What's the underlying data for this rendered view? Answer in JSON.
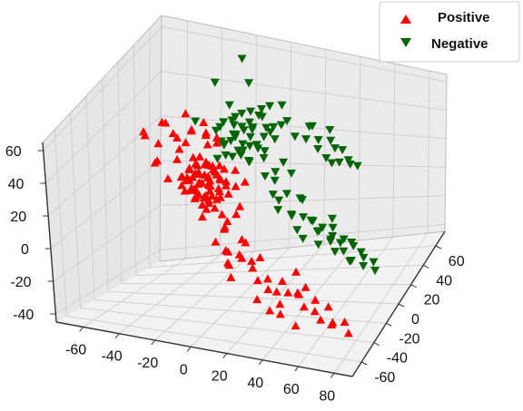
{
  "chart_data": {
    "type": "scatter",
    "projection": "3d",
    "title": "",
    "xlabel": "",
    "ylabel": "",
    "zlabel": "",
    "grid": true,
    "legend_position": "top-right",
    "axes": {
      "x": {
        "range": [
          -75,
          90
        ],
        "ticks": [
          -60,
          -40,
          -20,
          0,
          20,
          40,
          60,
          80
        ]
      },
      "y": {
        "range": [
          -75,
          75
        ],
        "ticks": [
          -60,
          -40,
          -20,
          0,
          20,
          40,
          60
        ]
      },
      "z": {
        "range": [
          -45,
          65
        ],
        "ticks": [
          -40,
          -20,
          0,
          20,
          40,
          60
        ]
      }
    },
    "series": [
      {
        "name": "Positive",
        "marker": "triangle-up",
        "color": "#ff0000",
        "points": [
          [
            -12,
            -25,
            32
          ],
          [
            -8,
            -22,
            30
          ],
          [
            -15,
            -20,
            34
          ],
          [
            -5,
            -28,
            36
          ],
          [
            -10,
            -18,
            28
          ],
          [
            -18,
            -24,
            38
          ],
          [
            -3,
            -20,
            26
          ],
          [
            -12,
            -30,
            30
          ],
          [
            -6,
            -15,
            33
          ],
          [
            -20,
            -22,
            32
          ],
          [
            -9,
            -26,
            24
          ],
          [
            -14,
            -12,
            36
          ],
          [
            -2,
            -24,
            30
          ],
          [
            -16,
            -28,
            28
          ],
          [
            -7,
            -19,
            40
          ],
          [
            -11,
            -22,
            22
          ],
          [
            -4,
            -30,
            34
          ],
          [
            -19,
            -17,
            30
          ],
          [
            -13,
            -25,
            42
          ],
          [
            -1,
            -16,
            28
          ],
          [
            -17,
            -31,
            35
          ],
          [
            -8,
            -11,
            31
          ],
          [
            -10,
            -27,
            20
          ],
          [
            -5,
            -21,
            38
          ],
          [
            -15,
            -14,
            26
          ],
          [
            -12,
            -33,
            32
          ],
          [
            -3,
            -13,
            36
          ],
          [
            -21,
            -26,
            34
          ],
          [
            -9,
            -20,
            18
          ],
          [
            -6,
            -32,
            29
          ],
          [
            -14,
            -19,
            44
          ],
          [
            -2,
            -27,
            25
          ],
          [
            -18,
            -15,
            37
          ],
          [
            -11,
            -29,
            27
          ],
          [
            -7,
            -24,
            43
          ],
          [
            -16,
            -21,
            21
          ],
          [
            -4,
            -17,
            32
          ],
          [
            -13,
            -34,
            33
          ],
          [
            -20,
            -19,
            29
          ],
          [
            -8,
            -28,
            39
          ],
          [
            -10,
            -16,
            23
          ],
          [
            -1,
            -23,
            35
          ],
          [
            -17,
            -26,
            40
          ],
          [
            -12,
            -13,
            30
          ],
          [
            -5,
            -31,
            26
          ],
          [
            -15,
            -23,
            36
          ],
          [
            -3,
            -19,
            22
          ],
          [
            -9,
            -35,
            31
          ],
          [
            -19,
            -28,
            27
          ],
          [
            -6,
            -12,
            37
          ],
          [
            -14,
            -27,
            23
          ],
          [
            -11,
            -18,
            41
          ],
          [
            -2,
            -33,
            30
          ],
          [
            -16,
            -16,
            33
          ],
          [
            -7,
            -29,
            19
          ],
          [
            -20,
            -30,
            36
          ],
          [
            -13,
            -11,
            28
          ],
          [
            -4,
            -26,
            42
          ],
          [
            -18,
            -20,
            24
          ],
          [
            -10,
            -32,
            35
          ],
          [
            -12,
            -15,
            55
          ],
          [
            -8,
            -10,
            52
          ],
          [
            -22,
            -18,
            50
          ],
          [
            -16,
            -8,
            58
          ],
          [
            -14,
            -28,
            48
          ],
          [
            -25,
            -22,
            54
          ],
          [
            -10,
            -5,
            46
          ],
          [
            -30,
            -15,
            52
          ],
          [
            5,
            -35,
            12
          ],
          [
            2,
            -40,
            6
          ],
          [
            8,
            -38,
            0
          ],
          [
            12,
            -32,
            -4
          ],
          [
            15,
            -36,
            8
          ],
          [
            10,
            -42,
            -6
          ],
          [
            18,
            -30,
            -8
          ],
          [
            14,
            -28,
            2
          ],
          [
            6,
            -33,
            16
          ],
          [
            9,
            -44,
            4
          ],
          [
            3,
            -29,
            10
          ],
          [
            16,
            -39,
            -2
          ],
          [
            20,
            -34,
            -10
          ],
          [
            12,
            -45,
            -12
          ],
          [
            22,
            -28,
            -6
          ],
          [
            7,
            -36,
            -8
          ],
          [
            25,
            -40,
            -14
          ],
          [
            28,
            -33,
            -16
          ],
          [
            30,
            -38,
            -20
          ],
          [
            35,
            -30,
            -18
          ],
          [
            40,
            -35,
            -22
          ],
          [
            38,
            -42,
            -26
          ],
          [
            45,
            -32,
            -24
          ],
          [
            50,
            -38,
            -28
          ],
          [
            42,
            -28,
            -12
          ],
          [
            33,
            -44,
            -30
          ],
          [
            55,
            -35,
            -32
          ],
          [
            48,
            -30,
            -20
          ],
          [
            36,
            -36,
            -36
          ],
          [
            60,
            -40,
            -34
          ],
          [
            52,
            -26,
            -30
          ],
          [
            65,
            -35,
            -38
          ],
          [
            46,
            -40,
            -40
          ],
          [
            58,
            -22,
            -36
          ],
          [
            30,
            -25,
            -28
          ],
          [
            26,
            -44,
            -24
          ],
          [
            70,
            -30,
            -40
          ],
          [
            40,
            -20,
            -30
          ],
          [
            75,
            -38,
            -42
          ],
          [
            62,
            -28,
            -44
          ],
          [
            -20,
            5,
            45
          ],
          [
            -26,
            0,
            48
          ],
          [
            -22,
            -30,
            46
          ],
          [
            -28,
            -12,
            42
          ],
          [
            -24,
            -5,
            50
          ],
          [
            -18,
            2,
            40
          ],
          [
            -35,
            -40,
            62
          ],
          [
            -40,
            -30,
            58
          ],
          [
            -32,
            -20,
            60
          ],
          [
            -30,
            -35,
            56
          ],
          [
            -25,
            -10,
            62
          ],
          [
            -36,
            -15,
            57
          ],
          [
            -28,
            -45,
            50
          ],
          [
            -20,
            -48,
            44
          ],
          [
            -15,
            -42,
            38
          ],
          [
            -35,
            -25,
            40
          ],
          [
            -5,
            -40,
            20
          ],
          [
            0,
            -35,
            24
          ],
          [
            -2,
            -10,
            20
          ],
          [
            4,
            -15,
            28
          ],
          [
            0,
            -5,
            32
          ],
          [
            6,
            -20,
            14
          ],
          [
            -4,
            -8,
            26
          ],
          [
            10,
            -25,
            22
          ],
          [
            2,
            -30,
            18
          ],
          [
            8,
            -12,
            30
          ]
        ]
      },
      {
        "name": "Negative",
        "marker": "triangle-down",
        "color": "#006400",
        "points": [
          [
            -10,
            5,
            40
          ],
          [
            -5,
            8,
            44
          ],
          [
            -12,
            10,
            38
          ],
          [
            -8,
            2,
            36
          ],
          [
            0,
            6,
            42
          ],
          [
            -15,
            12,
            46
          ],
          [
            -3,
            14,
            34
          ],
          [
            -10,
            18,
            40
          ],
          [
            2,
            10,
            30
          ],
          [
            -6,
            20,
            44
          ],
          [
            -14,
            4,
            48
          ],
          [
            5,
            15,
            36
          ],
          [
            -2,
            22,
            38
          ],
          [
            -9,
            14,
            50
          ],
          [
            4,
            4,
            34
          ],
          [
            -12,
            24,
            42
          ],
          [
            1,
            18,
            46
          ],
          [
            -7,
            9,
            32
          ],
          [
            6,
            21,
            40
          ],
          [
            -16,
            16,
            36
          ],
          [
            -4,
            26,
            44
          ],
          [
            3,
            12,
            48
          ],
          [
            -11,
            7,
            52
          ],
          [
            8,
            17,
            34
          ],
          [
            -1,
            2,
            40
          ],
          [
            -13,
            22,
            34
          ],
          [
            7,
            8,
            42
          ],
          [
            -5,
            16,
            30
          ],
          [
            10,
            20,
            44
          ],
          [
            -8,
            28,
            38
          ],
          [
            2,
            24,
            50
          ],
          [
            -15,
            8,
            30
          ],
          [
            5,
            27,
            42
          ],
          [
            -6,
            11,
            54
          ],
          [
            9,
            13,
            32
          ],
          [
            -10,
            30,
            46
          ],
          [
            0,
            16,
            36
          ],
          [
            -3,
            4,
            48
          ],
          [
            11,
            24,
            38
          ],
          [
            -12,
            18,
            56
          ],
          [
            10,
            12,
            22
          ],
          [
            14,
            16,
            18
          ],
          [
            16,
            8,
            14
          ],
          [
            20,
            18,
            10
          ],
          [
            18,
            10,
            4
          ],
          [
            24,
            14,
            0
          ],
          [
            22,
            20,
            -4
          ],
          [
            28,
            12,
            -8
          ],
          [
            12,
            22,
            20
          ],
          [
            26,
            22,
            6
          ],
          [
            30,
            16,
            -2
          ],
          [
            20,
            6,
            12
          ],
          [
            34,
            20,
            -6
          ],
          [
            32,
            10,
            -12
          ],
          [
            38,
            16,
            -10
          ],
          [
            15,
            26,
            24
          ],
          [
            36,
            24,
            -14
          ],
          [
            40,
            12,
            -16
          ],
          [
            25,
            28,
            2
          ],
          [
            44,
            20,
            -18
          ],
          [
            30,
            28,
            -10
          ],
          [
            42,
            26,
            -20
          ],
          [
            18,
            30,
            16
          ],
          [
            48,
            16,
            -22
          ],
          [
            35,
            32,
            -16
          ],
          [
            50,
            24,
            -26
          ],
          [
            46,
            30,
            -24
          ],
          [
            55,
            20,
            -30
          ],
          [
            40,
            34,
            -22
          ],
          [
            60,
            28,
            -32
          ],
          [
            52,
            34,
            -28
          ],
          [
            58,
            14,
            -26
          ],
          [
            45,
            38,
            -26
          ],
          [
            62,
            22,
            -34
          ],
          [
            38,
            40,
            -20
          ],
          [
            65,
            30,
            -36
          ],
          [
            48,
            42,
            -30
          ],
          [
            55,
            38,
            -34
          ],
          [
            68,
            24,
            -38
          ],
          [
            42,
            28,
            -8
          ],
          [
            20,
            30,
            38
          ],
          [
            24,
            36,
            34
          ],
          [
            30,
            38,
            28
          ],
          [
            28,
            44,
            30
          ],
          [
            34,
            40,
            22
          ],
          [
            36,
            48,
            24
          ],
          [
            40,
            44,
            18
          ],
          [
            32,
            52,
            26
          ],
          [
            26,
            40,
            40
          ],
          [
            38,
            54,
            20
          ],
          [
            44,
            50,
            14
          ],
          [
            22,
            46,
            36
          ],
          [
            30,
            56,
            30
          ],
          [
            46,
            56,
            10
          ],
          [
            35,
            46,
            16
          ],
          [
            40,
            58,
            12
          ],
          [
            -5,
            30,
            48
          ],
          [
            0,
            34,
            44
          ],
          [
            5,
            32,
            52
          ],
          [
            10,
            36,
            40
          ],
          [
            -2,
            38,
            46
          ],
          [
            8,
            42,
            48
          ],
          [
            14,
            34,
            44
          ],
          [
            4,
            40,
            36
          ],
          [
            -25,
            30,
            60
          ],
          [
            -20,
            55,
            62
          ],
          [
            -10,
            40,
            58
          ],
          [
            -30,
            15,
            45
          ]
        ]
      }
    ]
  },
  "legend": {
    "items": [
      {
        "label": "Positive",
        "color": "#ff0000"
      },
      {
        "label": "Negative",
        "color": "#006400"
      }
    ]
  }
}
